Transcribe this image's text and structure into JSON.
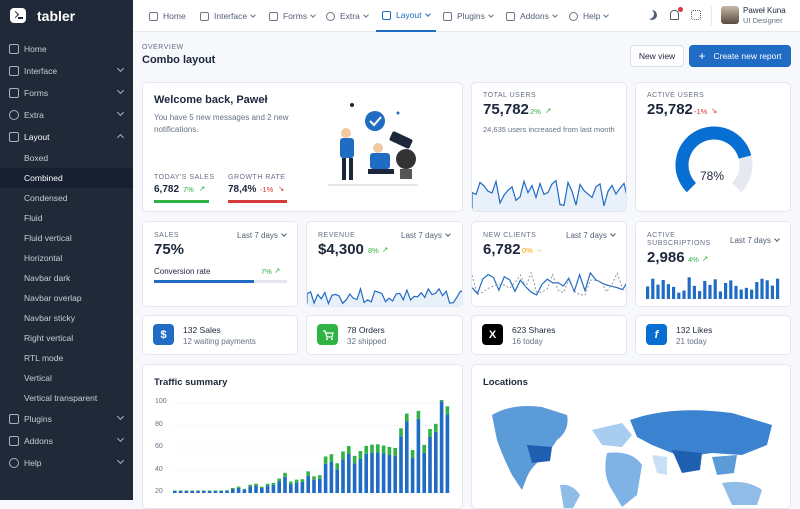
{
  "brand": {
    "name": "tabler"
  },
  "sidebar": {
    "items": [
      {
        "label": "Home"
      },
      {
        "label": "Interface"
      },
      {
        "label": "Forms"
      },
      {
        "label": "Extra"
      },
      {
        "label": "Layout"
      }
    ],
    "layout_sub": [
      "Boxed",
      "Combined",
      "Condensed",
      "Fluid",
      "Fluid vertical",
      "Horizontal",
      "Navbar dark",
      "Navbar overlap",
      "Navbar sticky",
      "Right vertical",
      "RTL mode",
      "Vertical",
      "Vertical transparent"
    ],
    "bottom_items": [
      {
        "label": "Plugins"
      },
      {
        "label": "Addons"
      },
      {
        "label": "Help"
      }
    ]
  },
  "topnav": [
    "Home",
    "Interface",
    "Forms",
    "Extra",
    "Layout",
    "Plugins",
    "Addons",
    "Help"
  ],
  "user": {
    "name": "Paweł Kuna",
    "role": "UI Designer"
  },
  "page": {
    "pretitle": "OVERVIEW",
    "title": "Combo layout",
    "new_view": "New view",
    "create": "Create new report"
  },
  "welcome": {
    "title": "Welcome back, Paweł",
    "text": "You have 5 new messages and 2 new notifications.",
    "sales_label": "TODAY'S SALES",
    "sales_value": "6,782",
    "sales_delta": "7%",
    "growth_label": "GROWTH RATE",
    "growth_value": "78,4%",
    "growth_delta": "-1%"
  },
  "total_users": {
    "label": "TOTAL USERS",
    "value": "75,782",
    "delta": "2%",
    "text": "24,635 users increased from last month"
  },
  "active_users": {
    "label": "ACTIVE USERS",
    "value": "25,782",
    "delta": "-1%",
    "gauge": "78%",
    "gauge_value": 78
  },
  "sales": {
    "label": "SALES",
    "value": "75%",
    "period": "Last 7 days",
    "conv": "Conversion rate",
    "conv_delta": "7%"
  },
  "revenue": {
    "label": "REVENUE",
    "value": "$4,300",
    "delta": "8%",
    "period": "Last 7 days"
  },
  "clients": {
    "label": "NEW CLIENTS",
    "value": "6,782",
    "delta": "0%",
    "period": "Last 7 days"
  },
  "subs": {
    "label1": "ACTIVE",
    "label2": "SUBSCRIPTIONS",
    "value": "2,986",
    "delta": "4%",
    "period": "Last 7 days"
  },
  "stats": [
    {
      "title": "132 Sales",
      "sub": "12 waiting payments",
      "icon": "$",
      "color": "#206bc4"
    },
    {
      "title": "78 Orders",
      "sub": "32 shipped",
      "icon": "cart",
      "color": "#2fb344"
    },
    {
      "title": "623 Shares",
      "sub": "16 today",
      "icon": "X",
      "color": "#000000"
    },
    {
      "title": "132 Likes",
      "sub": "21 today",
      "icon": "f",
      "color": "#066fd1"
    }
  ],
  "traffic": {
    "title": "Traffic summary",
    "ticks": [
      "100",
      "80",
      "60",
      "40",
      "20"
    ]
  },
  "locations": {
    "title": "Locations"
  }
}
